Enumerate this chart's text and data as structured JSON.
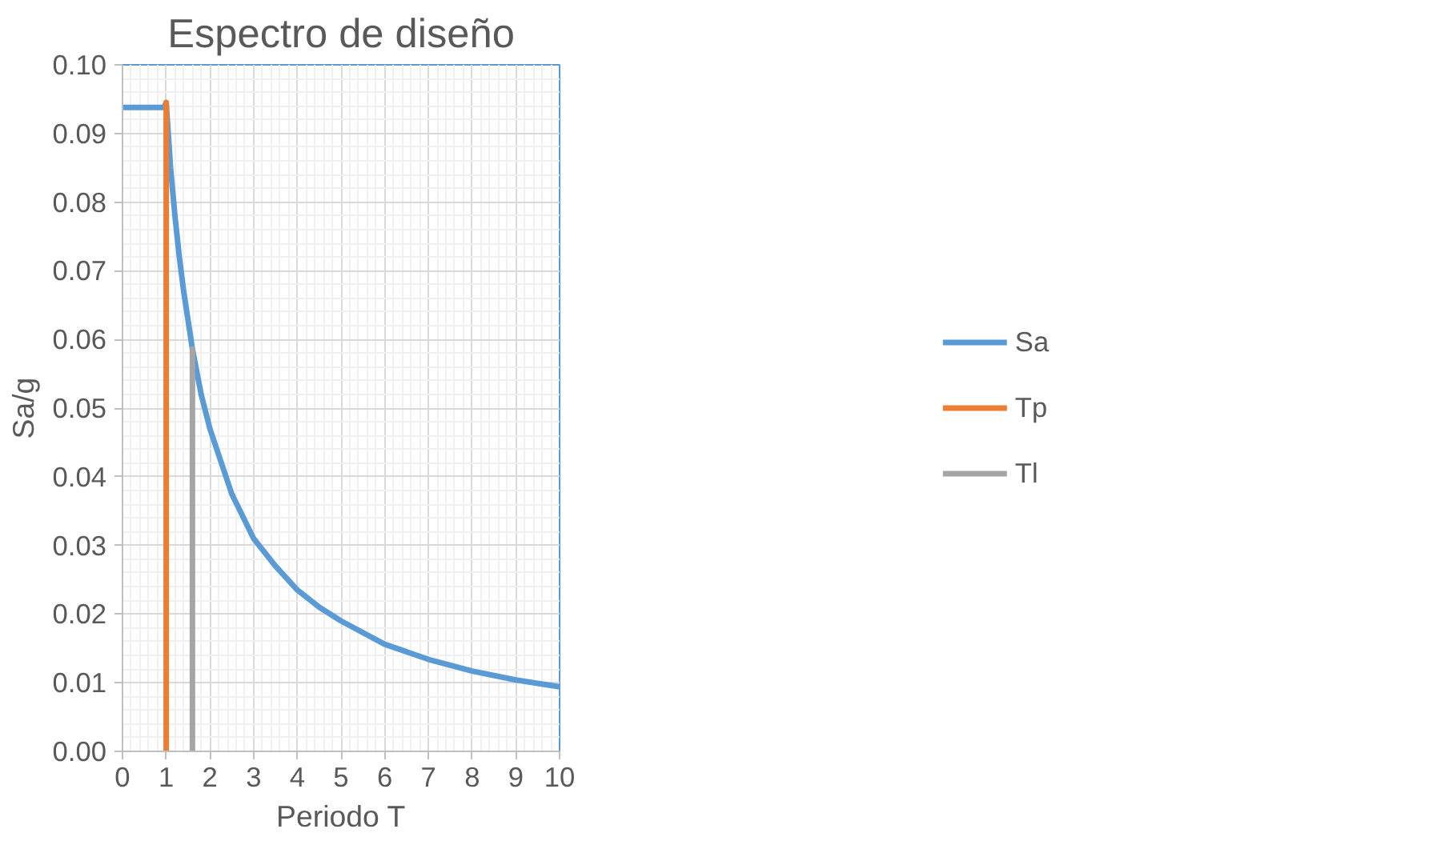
{
  "chart_data": {
    "type": "line",
    "title": "Espectro de diseño",
    "xlabel": "Periodo T",
    "ylabel": "Sa/g",
    "xlim": [
      0,
      10
    ],
    "xticks": [
      0,
      1,
      2,
      3,
      4,
      5,
      6,
      7,
      8,
      9,
      10
    ],
    "ylim": [
      0,
      0.1
    ],
    "yticks": [
      {
        "value": 0,
        "label": "0.00"
      },
      {
        "value": 0.01,
        "label": "0.01"
      },
      {
        "value": 0.02,
        "label": "0.02"
      },
      {
        "value": 0.03,
        "label": "0.03"
      },
      {
        "value": 0.04,
        "label": "0.04"
      },
      {
        "value": 0.05,
        "label": "0.05"
      },
      {
        "value": 0.06,
        "label": "0.06"
      },
      {
        "value": 0.07,
        "label": "0.07"
      },
      {
        "value": 0.08,
        "label": "0.08"
      },
      {
        "value": 0.09,
        "label": "0.09"
      },
      {
        "value": 0.1,
        "label": "0.10"
      }
    ],
    "grid": true,
    "legend": "right",
    "marker": "none",
    "line_style": "solid",
    "series": [
      {
        "name": "Sa",
        "color": "#5b9bd5",
        "x": [
          0,
          0.95,
          1.0,
          1.1,
          1.2,
          1.3,
          1.4,
          1.6,
          1.8,
          2,
          2.5,
          3,
          3.5,
          4,
          4.5,
          5,
          6,
          7,
          8,
          9,
          10
        ],
        "values": [
          0.0938,
          0.0938,
          0.0945,
          0.085,
          0.078,
          0.072,
          0.067,
          0.0586,
          0.052,
          0.047,
          0.0375,
          0.031,
          0.027,
          0.0235,
          0.021,
          0.019,
          0.0156,
          0.0134,
          0.0117,
          0.0104,
          0.0094
        ]
      },
      {
        "name": "Tp",
        "color": "#ed7d31",
        "x": [
          1,
          1
        ],
        "values": [
          0,
          0.0945
        ]
      },
      {
        "name": "Tl",
        "color": "#a5a5a5",
        "x": [
          1.6,
          1.6
        ],
        "values": [
          0,
          0.0586
        ]
      }
    ]
  }
}
